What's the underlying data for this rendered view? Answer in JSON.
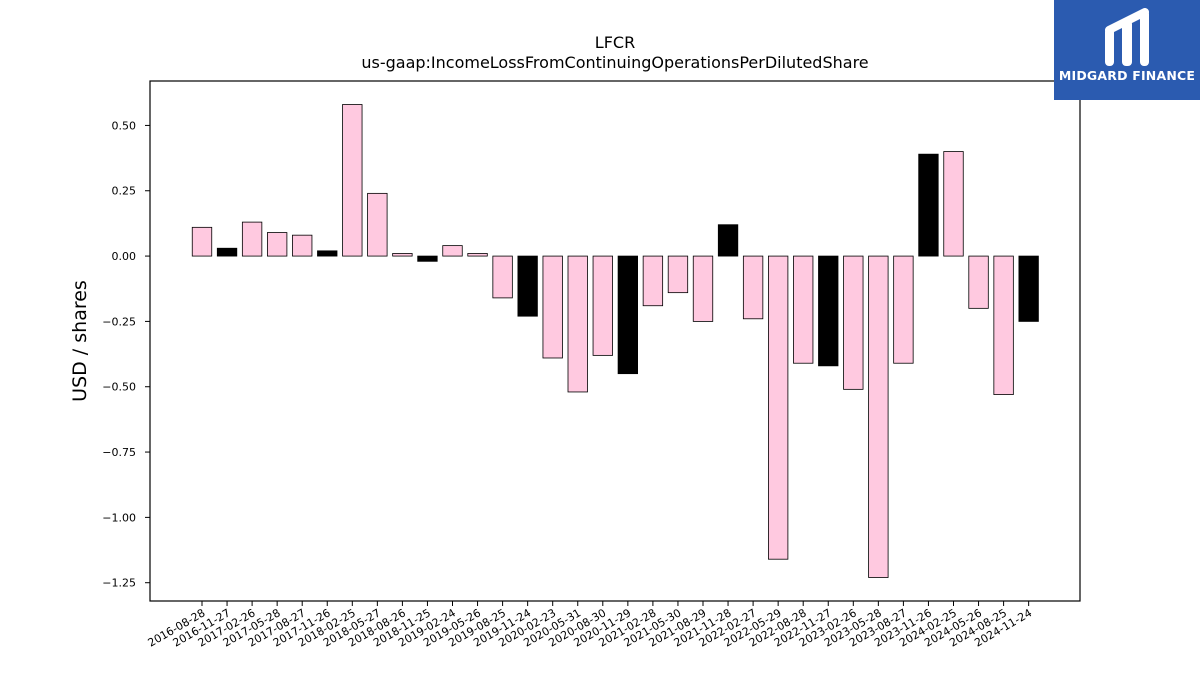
{
  "brand": {
    "logo_text": "MIDGARD FINANCE",
    "logo_bg": "#2b5bb0"
  },
  "colors": {
    "pink": "#ffc9e0",
    "black": "#000000",
    "edge": "#000000"
  },
  "chart_data": {
    "type": "bar",
    "title": "LFCR",
    "subtitle": "us-gaap:IncomeLossFromContinuingOperationsPerDilutedShare",
    "xlabel": "",
    "ylabel": "USD / shares",
    "ylim": [
      -1.32,
      0.67
    ],
    "yticks": [
      0.5,
      0.25,
      0.0,
      -0.25,
      -0.5,
      -0.75,
      -1.0,
      -1.25
    ],
    "ytick_labels": [
      "0.50",
      "0.25",
      "0.00",
      "−0.25",
      "−0.50",
      "−0.75",
      "−1.00",
      "−1.25"
    ],
    "grid": false,
    "categories": [
      "2016-08-28",
      "2016-11-27",
      "2017-02-26",
      "2017-05-28",
      "2017-08-27",
      "2017-11-26",
      "2018-02-25",
      "2018-05-27",
      "2018-08-26",
      "2018-11-25",
      "2019-02-24",
      "2019-05-26",
      "2019-08-25",
      "2019-11-24",
      "2020-02-23",
      "2020-05-31",
      "2020-08-30",
      "2020-11-29",
      "2021-02-28",
      "2021-05-30",
      "2021-08-29",
      "2021-11-28",
      "2022-02-27",
      "2022-05-29",
      "2022-08-28",
      "2022-11-27",
      "2023-02-26",
      "2023-05-28",
      "2023-08-27",
      "2023-11-26",
      "2024-02-25",
      "2024-05-26",
      "2024-08-25",
      "2024-11-24"
    ],
    "values": [
      0.11,
      0.03,
      0.13,
      0.09,
      0.08,
      0.02,
      0.58,
      0.24,
      0.01,
      -0.02,
      0.04,
      0.01,
      -0.16,
      -0.23,
      -0.39,
      -0.52,
      -0.38,
      -0.45,
      -0.19,
      -0.14,
      -0.25,
      0.12,
      -0.24,
      -1.16,
      -0.41,
      -0.42,
      -0.51,
      -1.23,
      -0.41,
      0.39,
      0.4,
      -0.2,
      -0.53,
      -0.25
    ],
    "bar_colors": [
      "pink",
      "black",
      "pink",
      "pink",
      "pink",
      "black",
      "pink",
      "pink",
      "pink",
      "black",
      "pink",
      "pink",
      "pink",
      "black",
      "pink",
      "pink",
      "pink",
      "black",
      "pink",
      "pink",
      "pink",
      "black",
      "pink",
      "pink",
      "pink",
      "black",
      "pink",
      "pink",
      "pink",
      "black",
      "pink",
      "pink",
      "pink",
      "black"
    ]
  }
}
